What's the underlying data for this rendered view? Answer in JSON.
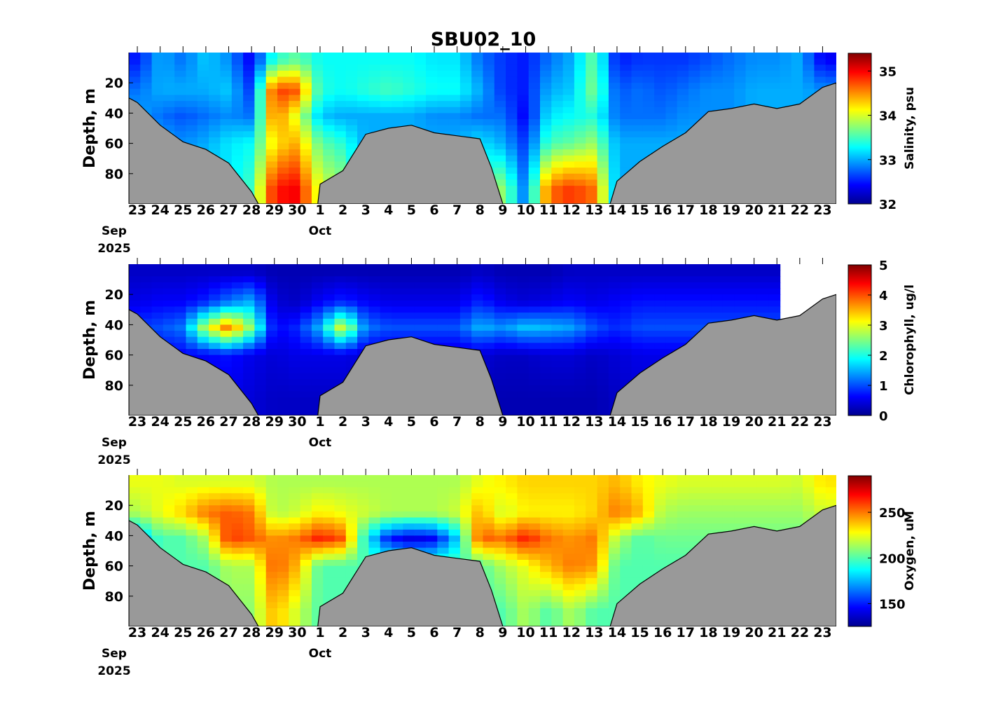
{
  "title": "SBU02_10",
  "x_axis": {
    "tick_labels": [
      "23",
      "24",
      "25",
      "26",
      "27",
      "28",
      "29",
      "30",
      "1",
      "2",
      "3",
      "4",
      "5",
      "6",
      "7",
      "8",
      "9",
      "10",
      "11",
      "12",
      "13",
      "14",
      "15",
      "16",
      "17",
      "18",
      "19",
      "20",
      "21",
      "22",
      "23"
    ],
    "month_labels": [
      "Sep",
      "Oct"
    ],
    "year_label": "2025",
    "start_date": "2025-09-23",
    "range_days": [
      -0.37,
      30.6
    ]
  },
  "bathymetry": {
    "fill": "#999999",
    "points_day_depth": [
      [
        -0.37,
        30
      ],
      [
        0,
        33
      ],
      [
        1,
        48
      ],
      [
        2,
        59
      ],
      [
        3,
        64
      ],
      [
        4,
        73
      ],
      [
        5,
        92
      ],
      [
        5.3,
        100
      ],
      [
        7.9,
        100
      ],
      [
        8,
        87
      ],
      [
        9,
        78
      ],
      [
        10,
        54
      ],
      [
        11,
        50
      ],
      [
        12,
        48
      ],
      [
        13,
        53
      ],
      [
        14,
        55
      ],
      [
        15,
        57
      ],
      [
        15.5,
        76
      ],
      [
        16,
        100
      ],
      [
        20.7,
        100
      ],
      [
        21,
        85
      ],
      [
        22,
        72
      ],
      [
        23,
        62
      ],
      [
        24,
        53
      ],
      [
        25,
        39
      ],
      [
        26,
        37
      ],
      [
        27,
        34
      ],
      [
        28,
        37
      ],
      [
        29,
        34
      ],
      [
        30,
        23
      ],
      [
        30.6,
        20
      ]
    ]
  },
  "chart_data": [
    {
      "type": "heatmap",
      "ylabel": "Depth, m",
      "ylim": [
        0,
        100
      ],
      "yticks": [
        20,
        40,
        60,
        80
      ],
      "ytick_labels": [
        "20",
        "40",
        "60",
        "80"
      ],
      "colorbar_label": "Salinity, psu",
      "clim": [
        32,
        35.4
      ],
      "cticks": [
        32,
        33,
        34,
        35
      ],
      "ctick_labels": [
        "32",
        "33",
        "34",
        "35"
      ],
      "depth_centers": [
        5,
        25,
        42,
        60,
        90
      ],
      "values": [
        [
          32.5,
          32.8,
          33.0,
          33.0,
          33.0
        ],
        [
          33.0,
          33.0,
          32.8,
          33.0,
          33.0
        ],
        [
          32.8,
          33.0,
          32.7,
          32.9,
          33.0
        ],
        [
          33.1,
          33.0,
          32.8,
          33.0,
          33.2
        ],
        [
          32.9,
          33.1,
          32.9,
          33.2,
          33.2
        ],
        [
          32.4,
          32.6,
          32.8,
          33.3,
          33.5
        ],
        [
          33.4,
          34.8,
          34.6,
          34.2,
          34.9
        ],
        [
          33.6,
          34.7,
          34.0,
          34.4,
          35.0
        ],
        [
          33.3,
          33.4,
          33.1,
          33.6,
          34.0
        ],
        [
          33.3,
          33.3,
          33.0,
          33.4,
          33.8
        ],
        [
          33.3,
          33.4,
          33.0,
          33.0,
          33.0
        ],
        [
          33.3,
          33.5,
          33.0,
          33.0,
          33.0
        ],
        [
          33.3,
          33.4,
          33.0,
          33.0,
          33.0
        ],
        [
          33.2,
          33.3,
          32.9,
          33.0,
          33.0
        ],
        [
          33.2,
          33.3,
          32.9,
          33.0,
          33.0
        ],
        [
          32.8,
          33.0,
          32.8,
          33.2,
          33.5
        ],
        [
          32.6,
          32.6,
          32.8,
          33.0,
          33.8
        ],
        [
          32.5,
          32.5,
          32.4,
          32.6,
          32.8
        ],
        [
          32.8,
          33.0,
          33.2,
          33.5,
          34.6
        ],
        [
          33.0,
          33.1,
          33.3,
          33.6,
          34.8
        ],
        [
          33.6,
          33.7,
          33.4,
          33.8,
          34.6
        ],
        [
          32.5,
          32.7,
          32.8,
          33.0,
          33.0
        ],
        [
          32.6,
          32.8,
          32.8,
          33.0,
          33.0
        ],
        [
          32.6,
          32.7,
          32.8,
          33.0,
          33.0
        ],
        [
          32.6,
          32.8,
          32.9,
          33.0,
          33.0
        ],
        [
          32.7,
          32.9,
          32.9,
          33.0,
          33.0
        ],
        [
          32.8,
          32.9,
          32.9,
          33.0,
          33.0
        ],
        [
          32.9,
          33.0,
          33.0,
          33.0,
          33.0
        ],
        [
          32.9,
          33.0,
          33.0,
          33.0,
          33.0
        ],
        [
          33.0,
          33.0,
          33.0,
          33.0,
          33.0
        ],
        [
          32.4,
          32.9,
          33.0,
          33.0,
          33.0
        ]
      ]
    },
    {
      "type": "heatmap",
      "ylabel": "Depth, m",
      "ylim": [
        0,
        100
      ],
      "yticks": [
        20,
        40,
        60,
        80
      ],
      "ytick_labels": [
        "20",
        "40",
        "60",
        "80"
      ],
      "colorbar_label": "Chlorophyll, ug/l",
      "clim": [
        0,
        5
      ],
      "cticks": [
        0,
        1,
        2,
        3,
        4,
        5
      ],
      "ctick_labels": [
        "0",
        "1",
        "2",
        "3",
        "4",
        "5"
      ],
      "depth_centers": [
        5,
        25,
        42,
        60,
        90
      ],
      "values": [
        [
          0.3,
          0.5,
          0.9,
          0.6,
          0.5
        ],
        [
          0.3,
          0.6,
          1.0,
          0.6,
          0.5
        ],
        [
          0.3,
          0.6,
          1.2,
          0.6,
          0.5
        ],
        [
          0.3,
          0.8,
          2.8,
          0.6,
          0.5
        ],
        [
          0.3,
          1.2,
          3.8,
          0.7,
          0.5
        ],
        [
          0.3,
          1.5,
          2.5,
          0.5,
          0.4
        ],
        [
          0.2,
          0.4,
          0.6,
          0.4,
          0.3
        ],
        [
          0.2,
          0.3,
          0.8,
          0.5,
          0.3
        ],
        [
          0.2,
          0.6,
          1.5,
          0.5,
          0.3
        ],
        [
          0.2,
          0.8,
          3.0,
          0.5,
          0.3
        ],
        [
          0.2,
          0.6,
          1.2,
          0.4,
          0.3
        ],
        [
          0.2,
          0.5,
          1.0,
          0.4,
          0.3
        ],
        [
          0.2,
          0.5,
          1.0,
          0.4,
          0.3
        ],
        [
          0.2,
          0.5,
          1.0,
          0.4,
          0.3
        ],
        [
          0.2,
          0.5,
          1.0,
          0.4,
          0.3
        ],
        [
          0.3,
          0.8,
          1.5,
          0.4,
          0.2
        ],
        [
          0.2,
          0.5,
          1.3,
          0.3,
          0.2
        ],
        [
          0.2,
          0.4,
          1.6,
          0.3,
          0.2
        ],
        [
          0.2,
          0.5,
          1.5,
          0.4,
          0.2
        ],
        [
          0.3,
          0.6,
          1.4,
          0.4,
          0.2
        ],
        [
          0.3,
          0.5,
          1.0,
          0.3,
          0.2
        ],
        [
          0.3,
          0.6,
          0.8,
          0.4,
          0.3
        ],
        [
          0.3,
          0.7,
          1.0,
          0.5,
          0.4
        ],
        [
          0.3,
          0.7,
          1.0,
          0.5,
          0.4
        ],
        [
          0.3,
          0.7,
          1.0,
          0.5,
          0.4
        ],
        [
          0.3,
          0.7,
          1.0,
          0.5,
          0.4
        ],
        [
          0.3,
          0.7,
          1.0,
          0.5,
          0.4
        ],
        [
          0.3,
          0.7,
          1.0,
          0.5,
          0.4
        ],
        [
          0.3,
          0.7,
          1.0,
          0.5,
          0.4
        ],
        null,
        null
      ]
    },
    {
      "type": "heatmap",
      "ylabel": "Depth, m",
      "ylim": [
        0,
        100
      ],
      "yticks": [
        20,
        40,
        60,
        80
      ],
      "ytick_labels": [
        "20",
        "40",
        "60",
        "80"
      ],
      "colorbar_label": "Oxygen, uM",
      "clim": [
        125,
        290
      ],
      "cticks": [
        150,
        200,
        250
      ],
      "ctick_labels": [
        "150",
        "200",
        "250"
      ],
      "depth_centers": [
        5,
        25,
        42,
        60,
        90
      ],
      "values": [
        [
          225,
          215,
          170,
          200,
          200
        ],
        [
          225,
          225,
          200,
          200,
          200
        ],
        [
          222,
          235,
          200,
          200,
          200
        ],
        [
          222,
          250,
          215,
          200,
          200
        ],
        [
          222,
          255,
          260,
          215,
          210
        ],
        [
          222,
          250,
          255,
          215,
          210
        ],
        [
          215,
          215,
          245,
          255,
          240
        ],
        [
          215,
          220,
          250,
          240,
          220
        ],
        [
          215,
          230,
          265,
          200,
          200
        ],
        [
          215,
          225,
          255,
          200,
          200
        ],
        [
          215,
          220,
          190,
          200,
          200
        ],
        [
          215,
          215,
          150,
          200,
          200
        ],
        [
          215,
          215,
          140,
          200,
          200
        ],
        [
          215,
          215,
          145,
          200,
          200
        ],
        [
          215,
          220,
          180,
          200,
          200
        ],
        [
          225,
          240,
          255,
          200,
          200
        ],
        [
          230,
          220,
          250,
          215,
          200
        ],
        [
          235,
          230,
          265,
          225,
          215
        ],
        [
          235,
          230,
          250,
          240,
          200
        ],
        [
          235,
          230,
          245,
          250,
          215
        ],
        [
          235,
          235,
          250,
          245,
          200
        ],
        [
          240,
          250,
          215,
          200,
          200
        ],
        [
          230,
          240,
          200,
          200,
          200
        ],
        [
          225,
          215,
          205,
          200,
          200
        ],
        [
          222,
          212,
          205,
          200,
          200
        ],
        [
          222,
          212,
          205,
          200,
          200
        ],
        [
          222,
          212,
          205,
          200,
          200
        ],
        [
          222,
          212,
          205,
          200,
          200
        ],
        [
          222,
          212,
          205,
          200,
          200
        ],
        [
          220,
          212,
          205,
          200,
          200
        ],
        [
          232,
          220,
          210,
          200,
          200
        ]
      ]
    }
  ]
}
